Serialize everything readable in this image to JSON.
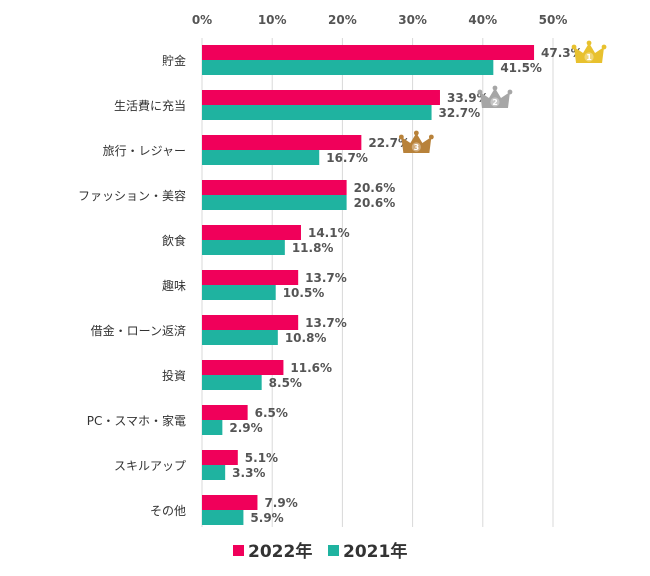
{
  "chart_data": {
    "type": "bar",
    "orientation": "horizontal",
    "categories": [
      "貯金",
      "生活費に充当",
      "旅行・レジャー",
      "ファッション・美容",
      "飲食",
      "趣味",
      "借金・ローン返済",
      "投資",
      "PC・スマホ・家電",
      "スキルアップ",
      "その他"
    ],
    "series": [
      {
        "name": "2022年",
        "color": "#F0005A",
        "values": [
          47.3,
          33.9,
          22.7,
          20.6,
          14.1,
          13.7,
          13.7,
          11.6,
          6.5,
          5.1,
          7.9
        ],
        "labels": [
          "47.3%",
          "33.9%",
          "22.7%",
          "20.6%",
          "14.1%",
          "13.7%",
          "13.7%",
          "11.6%",
          "6.5%",
          "5.1%",
          "7.9%"
        ]
      },
      {
        "name": "2021年",
        "color": "#1FB3A0",
        "values": [
          41.5,
          32.7,
          16.7,
          20.6,
          11.8,
          10.5,
          10.8,
          8.5,
          2.9,
          3.3,
          5.9
        ],
        "labels": [
          "41.5%",
          "32.7%",
          "16.7%",
          "20.6%",
          "11.8%",
          "10.5%",
          "10.8%",
          "8.5%",
          "2.9%",
          "3.3%",
          "5.9%"
        ]
      }
    ],
    "xlim": [
      0,
      50
    ],
    "ticks": [
      0,
      10,
      20,
      30,
      40,
      50
    ],
    "tick_labels": [
      "0%",
      "10%",
      "20%",
      "30%",
      "40%",
      "50%"
    ],
    "grid": true,
    "legend_position": "bottom",
    "rank_badges": [
      {
        "rank": "1",
        "category_index": 0,
        "color": "#E8C12E"
      },
      {
        "rank": "2",
        "category_index": 1,
        "color": "#A6A6A6"
      },
      {
        "rank": "3",
        "category_index": 2,
        "color": "#B8823A"
      }
    ]
  }
}
